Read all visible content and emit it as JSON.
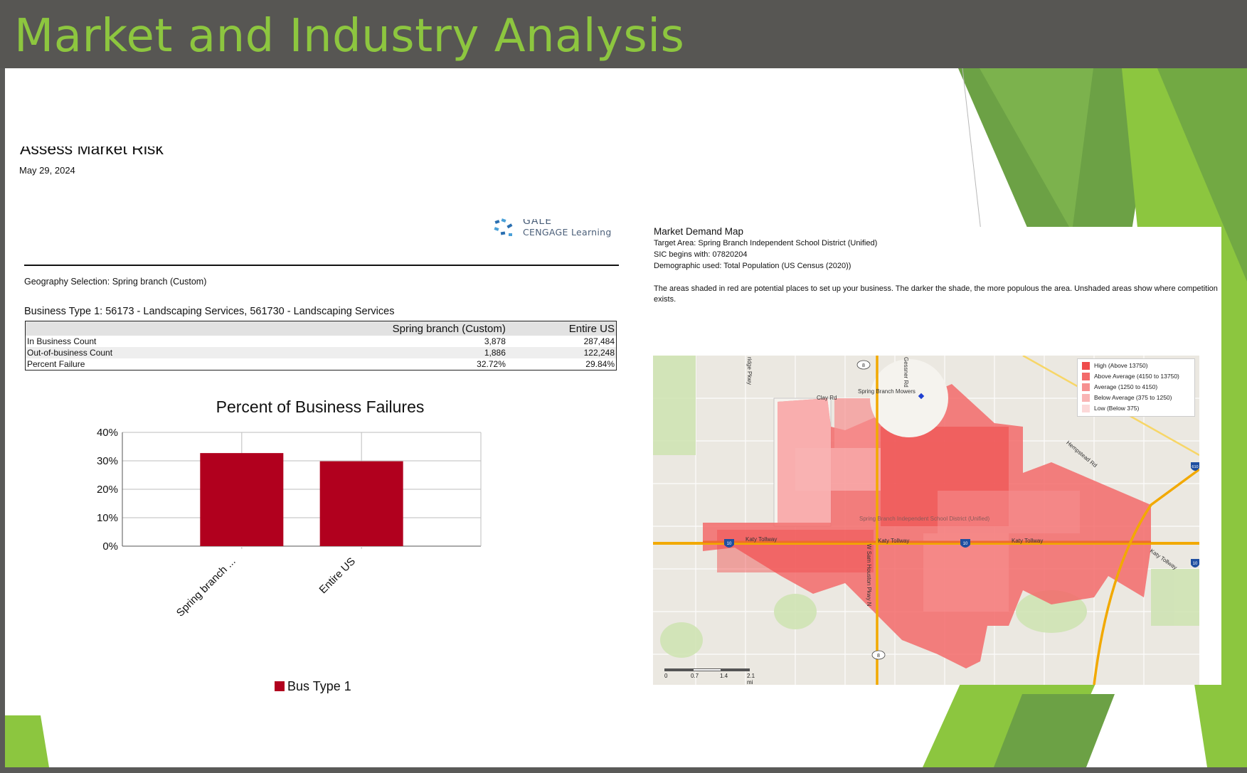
{
  "slide_title": "Market and Industry Analysis",
  "report": {
    "title": "Assess Market Risk",
    "date": "May 29, 2024",
    "logo_line1": "GALE",
    "logo_line2": "CENGAGE Learning",
    "geography": "Geography Selection: Spring branch (Custom)",
    "business_type": "Business Type 1: 56173 - Landscaping Services, 561730 - Landscaping Services",
    "table": {
      "headers": [
        "",
        "Spring branch (Custom)",
        "Entire US"
      ],
      "rows": [
        [
          "In Business Count",
          "3,878",
          "287,484"
        ],
        [
          "Out-of-business Count",
          "1,886",
          "122,248"
        ],
        [
          "Percent Failure",
          "32.72%",
          "29.84%"
        ]
      ]
    }
  },
  "chart_data": {
    "type": "bar",
    "title": "Percent of Business Failures",
    "categories": [
      "Spring branch ...",
      "Entire US"
    ],
    "series": [
      {
        "name": "Bus Type 1",
        "values": [
          32.72,
          29.84
        ],
        "color": "#b1001e"
      }
    ],
    "ylim": [
      0,
      40
    ],
    "yticks": [
      "0%",
      "10%",
      "20%",
      "30%",
      "40%"
    ],
    "xlabel": "",
    "ylabel": "",
    "grid": true,
    "legend": "bottom"
  },
  "map_panel": {
    "title": "Market Demand Map",
    "target_area": "Target Area: Spring Branch Independent School District (Unified)",
    "sic": "SIC begins with: 07820204",
    "demographic": "Demographic used: Total Population (US Census (2020))",
    "description": "The areas shaded in red are potential places to set up your business. The darker the shade, the more populous the area. Unshaded areas show where competition exists.",
    "legend": [
      {
        "label": "High (Above 13750)",
        "color": "#ef4c4c"
      },
      {
        "label": "Above Average (4150 to 13750)",
        "color": "#f36a6a"
      },
      {
        "label": "Average (1250 to 4150)",
        "color": "#f69090"
      },
      {
        "label": "Below Average (375 to 1250)",
        "color": "#f9b4b4"
      },
      {
        "label": "Low (Below 375)",
        "color": "#fcd8d8"
      }
    ],
    "labels": {
      "district": "Spring Branch Independent School District (Unified)",
      "clay_rd": "Clay Rd",
      "mowers": "Spring Branch Mowers",
      "gessner": "Gessner Rd",
      "hempstead": "Hempstead Rd",
      "katy1": "Katy Tollway",
      "katy2": "Katy Tollway",
      "katy3": "Katy Tollway",
      "katy4": "Katy Tollway",
      "sam_houston": "W Sam Houston Pkwy N",
      "ridge": "ridge Pkwy",
      "i10": "10",
      "hwy8": "8",
      "hwy610": "610"
    },
    "scale": [
      "0",
      "0.7",
      "1.4",
      "2.1 mi"
    ]
  }
}
